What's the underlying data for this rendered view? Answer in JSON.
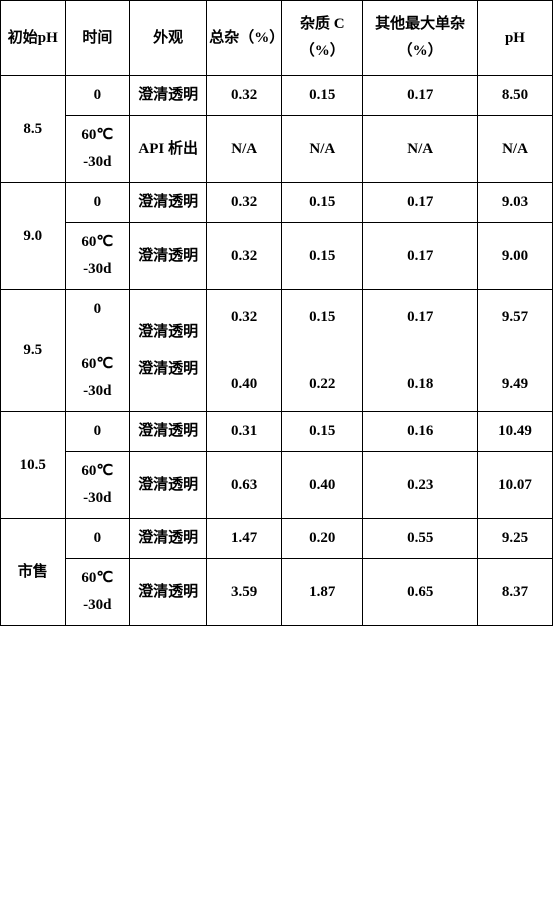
{
  "table": {
    "headers": {
      "initial_ph": "初始pH",
      "time": "时间",
      "appearance": "外观",
      "total_impurity": "总杂（%）",
      "impurity_c": "杂质 C（%）",
      "other_max": "其他最大单杂（%）",
      "ph": "pH"
    },
    "labels": {
      "clear": "澄清透明",
      "api_out": "API 析出",
      "t0": "0",
      "t60_l1": "60℃",
      "t60_l2": "-30d",
      "na": "N/A",
      "market": "市售"
    },
    "groups": [
      {
        "initial_ph": "8.5",
        "rows": [
          {
            "time_key": "t0",
            "appearance_key": "clear",
            "total": "0.32",
            "impC": "0.15",
            "other": "0.17",
            "ph": "8.50"
          },
          {
            "time_key": "t60",
            "appearance_key": "api_out",
            "total": "N/A",
            "impC": "N/A",
            "other": "N/A",
            "ph": "N/A"
          }
        ]
      },
      {
        "initial_ph": "9.0",
        "rows": [
          {
            "time_key": "t0",
            "appearance_key": "clear",
            "total": "0.32",
            "impC": "0.15",
            "other": "0.17",
            "ph": "9.03"
          },
          {
            "time_key": "t60",
            "appearance_key": "clear",
            "total": "0.32",
            "impC": "0.15",
            "other": "0.17",
            "ph": "9.00"
          }
        ]
      },
      {
        "initial_ph": "9.5",
        "merged_inner": true,
        "rows": [
          {
            "time_key": "t0",
            "appearance_key": "clear",
            "total": "0.32",
            "impC": "0.15",
            "other": "0.17",
            "ph": "9.57"
          },
          {
            "time_key": "t60",
            "appearance_key": "clear",
            "total": "0.40",
            "impC": "0.22",
            "other": "0.18",
            "ph": "9.49"
          }
        ]
      },
      {
        "initial_ph": "10.5",
        "rows": [
          {
            "time_key": "t0",
            "appearance_key": "clear",
            "total": "0.31",
            "impC": "0.15",
            "other": "0.16",
            "ph": "10.49"
          },
          {
            "time_key": "t60",
            "appearance_key": "clear",
            "total": "0.63",
            "impC": "0.40",
            "other": "0.23",
            "ph": "10.07"
          }
        ]
      },
      {
        "initial_ph": "市售",
        "rows": [
          {
            "time_key": "t0",
            "appearance_key": "clear",
            "total": "1.47",
            "impC": "0.20",
            "other": "0.55",
            "ph": "9.25"
          },
          {
            "time_key": "t60",
            "appearance_key": "clear",
            "total": "3.59",
            "impC": "1.87",
            "other": "0.65",
            "ph": "8.37"
          }
        ]
      }
    ],
    "col_widths": [
      "62",
      "62",
      "74",
      "72",
      "78",
      "110",
      "72"
    ]
  }
}
